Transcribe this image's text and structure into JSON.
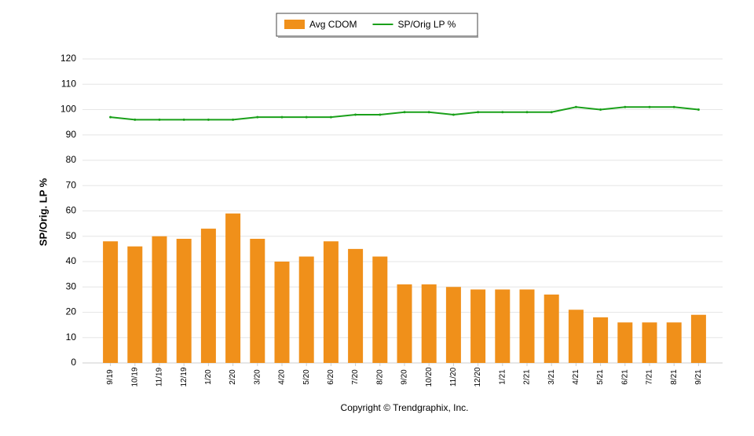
{
  "chart_data": {
    "type": "bar",
    "y_label": "SP/Orig. LP %",
    "caption": "Copyright © Trendgraphix, Inc.",
    "categories": [
      "9/19",
      "10/19",
      "11/19",
      "12/19",
      "1/20",
      "2/20",
      "3/20",
      "4/20",
      "5/20",
      "6/20",
      "7/20",
      "8/20",
      "9/20",
      "10/20",
      "11/20",
      "12/20",
      "1/21",
      "2/21",
      "3/21",
      "4/21",
      "5/21",
      "6/21",
      "7/21",
      "8/21",
      "9/21"
    ],
    "series": [
      {
        "name": "Avg CDOM",
        "type": "bar",
        "color": "#f0901a",
        "values": [
          48,
          46,
          50,
          49,
          53,
          59,
          49,
          40,
          42,
          48,
          45,
          42,
          31,
          31,
          30,
          29,
          29,
          29,
          27,
          21,
          18,
          16,
          16,
          16,
          19
        ]
      },
      {
        "name": "SP/Orig LP %",
        "type": "line",
        "color": "#1aa01a",
        "values": [
          97,
          96,
          96,
          96,
          96,
          96,
          97,
          97,
          97,
          97,
          98,
          98,
          99,
          99,
          98,
          99,
          99,
          99,
          99,
          101,
          100,
          101,
          101,
          101,
          100
        ]
      }
    ],
    "ylim": [
      0,
      120
    ],
    "yticks": [
      0,
      10,
      20,
      30,
      40,
      50,
      60,
      70,
      80,
      90,
      100,
      110,
      120
    ],
    "grid": true,
    "legend": "top"
  }
}
